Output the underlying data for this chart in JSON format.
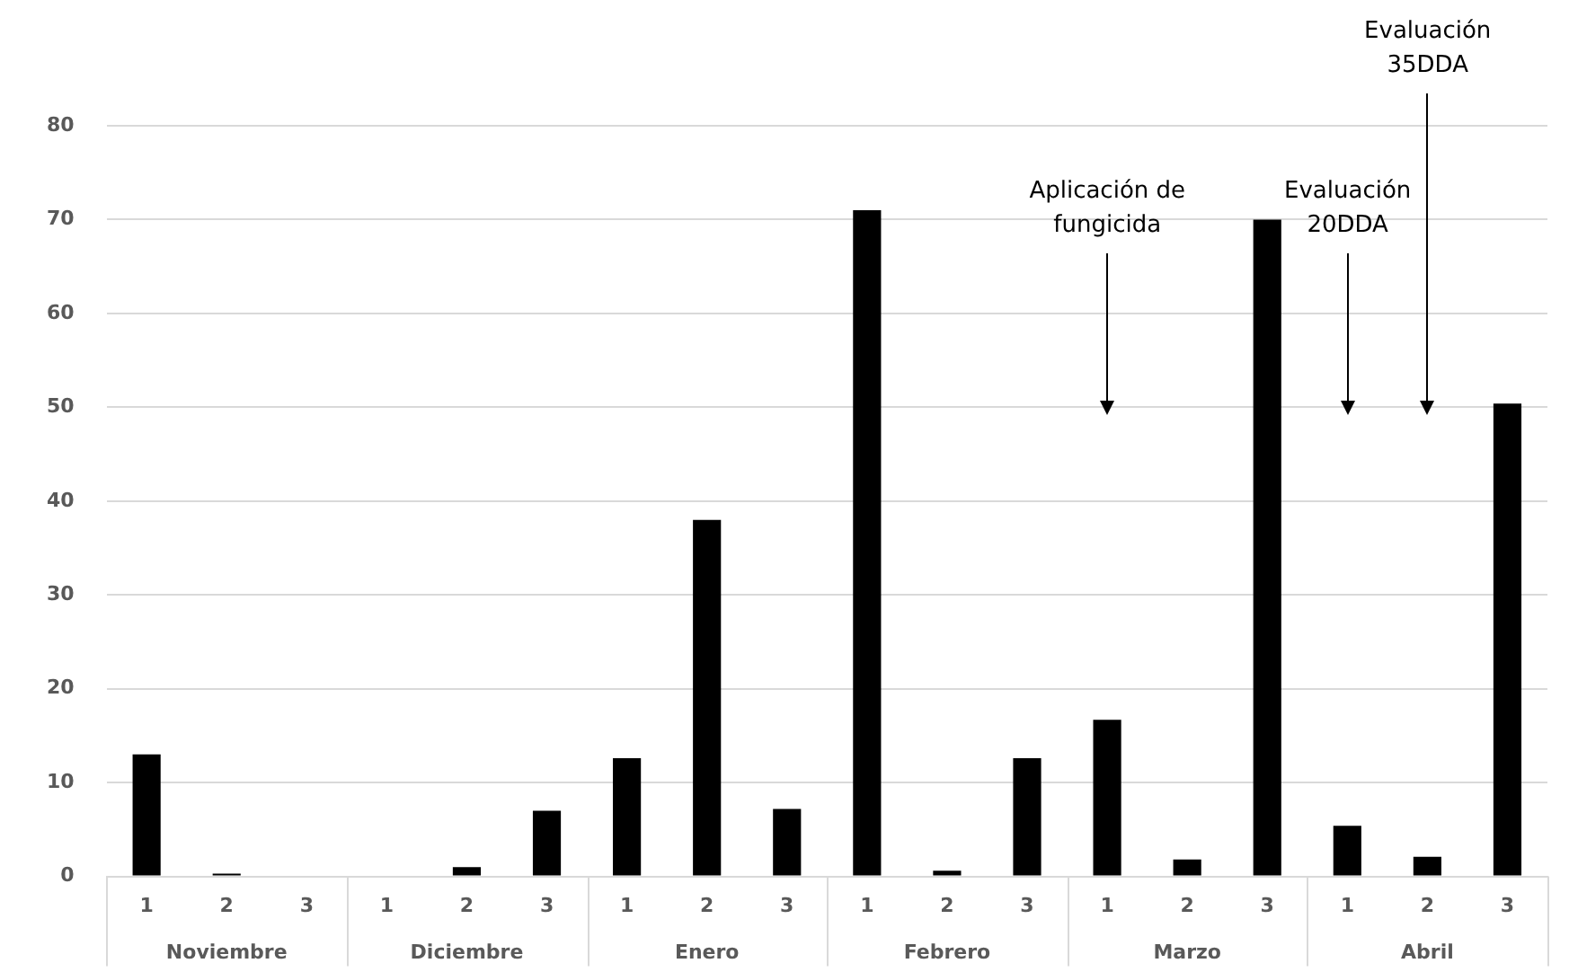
{
  "chart_data": {
    "type": "bar",
    "categories": [
      "1",
      "2",
      "3",
      "1",
      "2",
      "3",
      "1",
      "2",
      "3",
      "1",
      "2",
      "3",
      "1",
      "2",
      "3",
      "1",
      "2",
      "3"
    ],
    "values": [
      13,
      0.3,
      0,
      0,
      1,
      7,
      12.6,
      38,
      7.2,
      71,
      0.6,
      12.6,
      16.7,
      1.8,
      70,
      5.4,
      2.1,
      50.4
    ],
    "color": "#000000",
    "ylim": [
      0,
      80
    ],
    "yticks": [
      0,
      10,
      20,
      30,
      40,
      50,
      60,
      70,
      80
    ],
    "grid": "y",
    "annotations": [
      "Noviembre",
      "Diciembre",
      "Enero",
      "Febrero",
      "Marzo",
      "Abril",
      "Aplicación de fungicida",
      "Evaluación 20DDA",
      "Evaluación 35DDA"
    ]
  }
}
